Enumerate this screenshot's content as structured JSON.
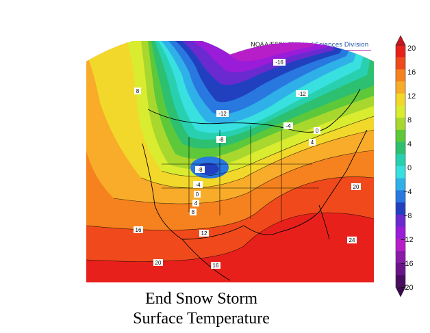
{
  "credit": {
    "org": "NOAA/ESRL",
    "division": "Physical Sciences Division"
  },
  "title": {
    "line1": "End Snow Storm",
    "line2": "Surface Temperature"
  },
  "colorbar": {
    "ticks": [
      "20",
      "16",
      "12",
      "8",
      "4",
      "0",
      "−4",
      "−8",
      "−12",
      "−16",
      "−20"
    ],
    "colors": [
      "#e8201c",
      "#f04a1c",
      "#f5821e",
      "#f8ac2a",
      "#f2d82a",
      "#d9ec30",
      "#a8d82e",
      "#5cc83a",
      "#2cc070",
      "#28d0b0",
      "#38e0e0",
      "#30b0e8",
      "#2878e0",
      "#2040c0",
      "#6a2ad0",
      "#9a1cd8",
      "#b81ec8",
      "#8a1aa8",
      "#6a1488",
      "#4a0c60"
    ]
  },
  "map": {
    "contour_labels": [
      {
        "text": "8"
      },
      {
        "text": "-16"
      },
      {
        "text": "-12"
      },
      {
        "text": "-12"
      },
      {
        "text": "-8"
      },
      {
        "text": "-4"
      },
      {
        "text": "0"
      },
      {
        "text": "4"
      },
      {
        "text": "-8"
      },
      {
        "text": "-4"
      },
      {
        "text": "0"
      },
      {
        "text": "4"
      },
      {
        "text": "8"
      },
      {
        "text": "12"
      },
      {
        "text": "16"
      },
      {
        "text": "20"
      },
      {
        "text": "20"
      },
      {
        "text": "16"
      },
      {
        "text": "24"
      }
    ]
  }
}
